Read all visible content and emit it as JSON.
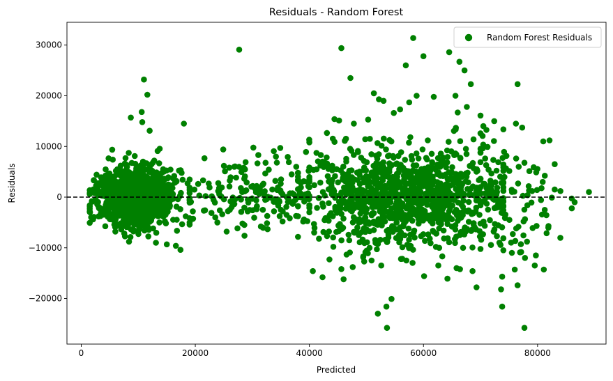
{
  "chart_data": {
    "type": "scatter",
    "title": "Residuals - Random Forest",
    "xlabel": "Predicted",
    "ylabel": "Residuals",
    "xlim": [
      -2500,
      92000
    ],
    "ylim": [
      -29000,
      34500
    ],
    "xticks": [
      0,
      20000,
      40000,
      60000,
      80000
    ],
    "xtick_labels": [
      "0",
      "20000",
      "40000",
      "60000",
      "80000"
    ],
    "yticks": [
      -20000,
      -10000,
      0,
      10000,
      20000,
      30000
    ],
    "ytick_labels": [
      "−20000",
      "−10000",
      "0",
      "10000",
      "20000",
      "30000"
    ],
    "grid": false,
    "legend": {
      "position": "top-right",
      "entries": [
        "Random Forest Residuals"
      ]
    },
    "reference_line": {
      "y": 0,
      "style": "dashed",
      "color": "#000000"
    },
    "series": [
      {
        "name": "Random Forest Residuals",
        "color": "#008000",
        "clusters": [
          {
            "x_range": [
              1500,
              19000
            ],
            "center_x": 9500,
            "x_spread": 3200,
            "residual_spread": 2800,
            "count": 1300
          },
          {
            "x_range": [
              19000,
              40000
            ],
            "center_x": 30000,
            "x_spread": 6000,
            "residual_spread": 3600,
            "count": 160
          },
          {
            "x_range": [
              38000,
              74000
            ],
            "center_x": 57000,
            "x_spread": 8500,
            "residual_spread": 4600,
            "count": 1100
          },
          {
            "x_range": [
              70000,
              86000
            ],
            "center_x": 76000,
            "x_spread": 4500,
            "residual_spread": 6000,
            "count": 90
          }
        ],
        "points": [
          [
            27700,
            29100
          ],
          [
            45600,
            29400
          ],
          [
            58200,
            31400
          ],
          [
            60000,
            27800
          ],
          [
            64500,
            28600
          ],
          [
            66300,
            26700
          ],
          [
            67200,
            25000
          ],
          [
            56900,
            26000
          ],
          [
            11000,
            23200
          ],
          [
            11600,
            20200
          ],
          [
            47200,
            23500
          ],
          [
            51300,
            20500
          ],
          [
            52200,
            19300
          ],
          [
            53000,
            19000
          ],
          [
            57500,
            18700
          ],
          [
            61800,
            19800
          ],
          [
            68300,
            22300
          ],
          [
            76500,
            22300
          ],
          [
            65600,
            20000
          ],
          [
            58800,
            20000
          ],
          [
            10600,
            16800
          ],
          [
            8700,
            15700
          ],
          [
            10700,
            14800
          ],
          [
            18000,
            14500
          ],
          [
            12000,
            13100
          ],
          [
            44400,
            15400
          ],
          [
            45200,
            15100
          ],
          [
            47800,
            14500
          ],
          [
            50300,
            15300
          ],
          [
            54800,
            16600
          ],
          [
            55900,
            17300
          ],
          [
            66000,
            16700
          ],
          [
            67600,
            17800
          ],
          [
            70000,
            16100
          ],
          [
            72400,
            15000
          ],
          [
            76200,
            14500
          ],
          [
            70500,
            14000
          ],
          [
            81000,
            11000
          ],
          [
            82100,
            11200
          ],
          [
            83000,
            6500
          ],
          [
            78500,
            1300
          ],
          [
            80900,
            3000
          ],
          [
            82500,
            -100
          ],
          [
            84000,
            1200
          ],
          [
            86500,
            -1000
          ],
          [
            89000,
            1000
          ],
          [
            83000,
            1500
          ],
          [
            79900,
            1400
          ],
          [
            53600,
            -25800
          ],
          [
            77700,
            -25800
          ],
          [
            52000,
            -23000
          ],
          [
            53500,
            -21600
          ],
          [
            54400,
            -20100
          ],
          [
            73800,
            -21600
          ],
          [
            73600,
            -18200
          ],
          [
            69300,
            -17800
          ],
          [
            76500,
            -17400
          ],
          [
            64200,
            -16100
          ],
          [
            60100,
            -15600
          ],
          [
            46000,
            -16200
          ],
          [
            42300,
            -15800
          ],
          [
            40600,
            -14600
          ],
          [
            45600,
            -14200
          ],
          [
            47600,
            -13800
          ],
          [
            52600,
            -13500
          ],
          [
            57000,
            -12500
          ],
          [
            62600,
            -13500
          ],
          [
            65800,
            -14000
          ],
          [
            68600,
            -14600
          ],
          [
            73800,
            -15700
          ],
          [
            76000,
            -14300
          ],
          [
            79500,
            -13500
          ],
          [
            81100,
            -14300
          ],
          [
            77800,
            -12000
          ],
          [
            79700,
            -11500
          ],
          [
            75500,
            -11000
          ],
          [
            17400,
            -10400
          ],
          [
            16600,
            -9600
          ],
          [
            13100,
            -9000
          ],
          [
            44200,
            -9800
          ],
          [
            49600,
            -12700
          ],
          [
            50900,
            -12500
          ],
          [
            63300,
            -11700
          ],
          [
            25500,
            -6800
          ],
          [
            28600,
            -5500
          ],
          [
            31500,
            -5800
          ],
          [
            35300,
            -4800
          ],
          [
            36000,
            -3500
          ],
          [
            24900,
            9400
          ],
          [
            25200,
            5100
          ],
          [
            28500,
            5800
          ],
          [
            34900,
            9700
          ],
          [
            34300,
            6800
          ],
          [
            36400,
            6900
          ],
          [
            37700,
            6000
          ],
          [
            29000,
            2900
          ],
          [
            32000,
            1000
          ],
          [
            38500,
            2800
          ],
          [
            40000,
            10800
          ],
          [
            42000,
            8300
          ],
          [
            44000,
            6200
          ],
          [
            46200,
            11100
          ],
          [
            48500,
            9100
          ],
          [
            20500,
            2600
          ],
          [
            22500,
            1900
          ],
          [
            21700,
            -2600
          ],
          [
            19500,
            -4300
          ],
          [
            23500,
            -4000
          ],
          [
            26500,
            -1200
          ],
          [
            30800,
            -1800
          ],
          [
            33500,
            1500
          ],
          [
            35000,
            -2500
          ],
          [
            37200,
            -900
          ]
        ]
      }
    ]
  }
}
